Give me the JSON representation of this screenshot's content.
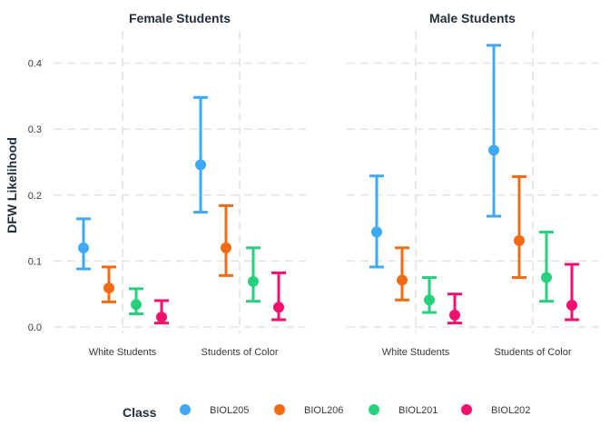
{
  "chart_data": {
    "type": "scatter",
    "subtype": "point-range (errorbar) faceted",
    "ylabel": "DFW Likelihood",
    "xlabel": "",
    "ylim": [
      -0.01,
      0.45
    ],
    "yticks": [
      "0.0",
      "0.1",
      "0.2",
      "0.3",
      "0.4"
    ],
    "ytick_values": [
      0.0,
      0.1,
      0.2,
      0.3,
      0.4
    ],
    "categories": [
      "White Students",
      "Students of Color"
    ],
    "grid": true,
    "legend": {
      "title": "Class",
      "placement": "bottom",
      "entries": [
        "BIOL205",
        "BIOL206",
        "BIOL201",
        "BIOL202"
      ]
    },
    "colors": {
      "BIOL205": "#3fa9f5",
      "BIOL206": "#f26b13",
      "BIOL201": "#26d07c",
      "BIOL202": "#f2106e"
    },
    "facets": [
      {
        "title": "Female Students",
        "series": [
          {
            "name": "BIOL205",
            "points": [
              {
                "category": "White Students",
                "y": 0.12,
                "low": 0.088,
                "high": 0.164
              },
              {
                "category": "Students of Color",
                "y": 0.246,
                "low": 0.174,
                "high": 0.348
              }
            ]
          },
          {
            "name": "BIOL206",
            "points": [
              {
                "category": "White Students",
                "y": 0.059,
                "low": 0.038,
                "high": 0.091
              },
              {
                "category": "Students of Color",
                "y": 0.12,
                "low": 0.078,
                "high": 0.184
              }
            ]
          },
          {
            "name": "BIOL201",
            "points": [
              {
                "category": "White Students",
                "y": 0.034,
                "low": 0.02,
                "high": 0.058
              },
              {
                "category": "Students of Color",
                "y": 0.069,
                "low": 0.039,
                "high": 0.12
              }
            ]
          },
          {
            "name": "BIOL202",
            "points": [
              {
                "category": "White Students",
                "y": 0.015,
                "low": 0.006,
                "high": 0.04
              },
              {
                "category": "Students of Color",
                "y": 0.03,
                "low": 0.011,
                "high": 0.082
              }
            ]
          }
        ]
      },
      {
        "title": "Male Students",
        "series": [
          {
            "name": "BIOL205",
            "points": [
              {
                "category": "White Students",
                "y": 0.144,
                "low": 0.091,
                "high": 0.229
              },
              {
                "category": "Students of Color",
                "y": 0.268,
                "low": 0.168,
                "high": 0.427
              }
            ]
          },
          {
            "name": "BIOL206",
            "points": [
              {
                "category": "White Students",
                "y": 0.071,
                "low": 0.041,
                "high": 0.12
              },
              {
                "category": "Students of Color",
                "y": 0.131,
                "low": 0.075,
                "high": 0.228
              }
            ]
          },
          {
            "name": "BIOL201",
            "points": [
              {
                "category": "White Students",
                "y": 0.041,
                "low": 0.022,
                "high": 0.075
              },
              {
                "category": "Students of Color",
                "y": 0.075,
                "low": 0.039,
                "high": 0.144
              }
            ]
          },
          {
            "name": "BIOL202",
            "points": [
              {
                "category": "White Students",
                "y": 0.018,
                "low": 0.006,
                "high": 0.05
              },
              {
                "category": "Students of Color",
                "y": 0.033,
                "low": 0.011,
                "high": 0.095
              }
            ]
          }
        ]
      }
    ]
  }
}
